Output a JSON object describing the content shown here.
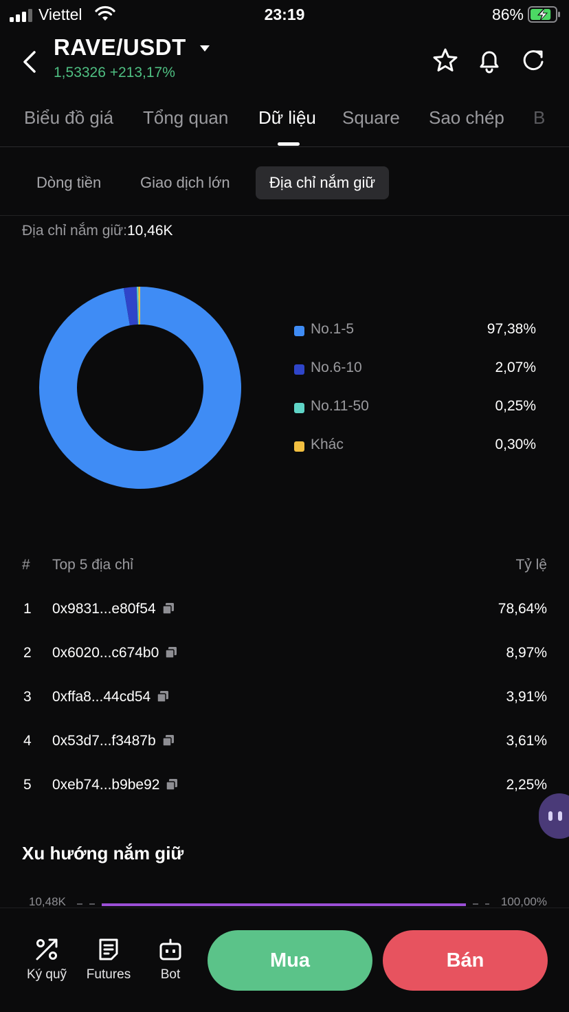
{
  "status_bar": {
    "carrier": "Viettel",
    "time": "23:19",
    "battery": "86%",
    "battery_level": 0.86
  },
  "header": {
    "pair": "RAVE/USDT",
    "price_change": "1,53326 +213,17%",
    "price_color": "#4fbf82",
    "icons": [
      "star-icon",
      "bell-icon",
      "refresh-icon"
    ]
  },
  "tabs": [
    {
      "label": "Biểu đồ giá"
    },
    {
      "label": "Tổng quan"
    },
    {
      "label": "Dữ liệu",
      "active": true
    },
    {
      "label": "Square"
    },
    {
      "label": "Sao chép"
    },
    {
      "label": "B"
    }
  ],
  "subtabs": [
    {
      "label": "Dòng tiền"
    },
    {
      "label": "Giao dịch lớn"
    },
    {
      "label": "Địa chỉ nắm giữ",
      "active": true
    }
  ],
  "holders": {
    "label": "Địa chỉ nắm giữ:",
    "value": "10,46K"
  },
  "chart_data": {
    "type": "pie",
    "donut": true,
    "legend_position": "right",
    "categories": [
      "No.1-5",
      "No.6-10",
      "No.11-50",
      "Khác"
    ],
    "values": [
      97.38,
      2.07,
      0.25,
      0.3
    ],
    "labels": [
      "97,38%",
      "2,07%",
      "0,25%",
      "0,30%"
    ],
    "colors": [
      "#3f8cf5",
      "#2f45c9",
      "#5fd4c6",
      "#f2bf40"
    ]
  },
  "top_list": {
    "col_rank": "#",
    "col_address": "Top 5 địa chỉ",
    "col_ratio": "Tỷ lệ",
    "rows": [
      {
        "rank": "1",
        "address": "0x9831...e80f54",
        "pct": "78,64%"
      },
      {
        "rank": "2",
        "address": "0x6020...c674b0",
        "pct": "8,97%"
      },
      {
        "rank": "3",
        "address": "0xffa8...44cd54",
        "pct": "3,91%"
      },
      {
        "rank": "4",
        "address": "0x53d7...f3487b",
        "pct": "3,61%"
      },
      {
        "rank": "5",
        "address": "0xeb74...b9be92",
        "pct": "2,25%"
      }
    ]
  },
  "trend": {
    "title": "Xu hướng nắm giữ",
    "y_left_top": "10,48K",
    "y_right_top": "100,00%"
  },
  "bottom_nav": [
    {
      "label": "Ký quỹ",
      "icon": "margin-icon"
    },
    {
      "label": "Futures",
      "icon": "futures-icon"
    },
    {
      "label": "Bot",
      "icon": "bot-icon"
    }
  ],
  "actions": {
    "buy": "Mua",
    "sell": "Bán"
  }
}
